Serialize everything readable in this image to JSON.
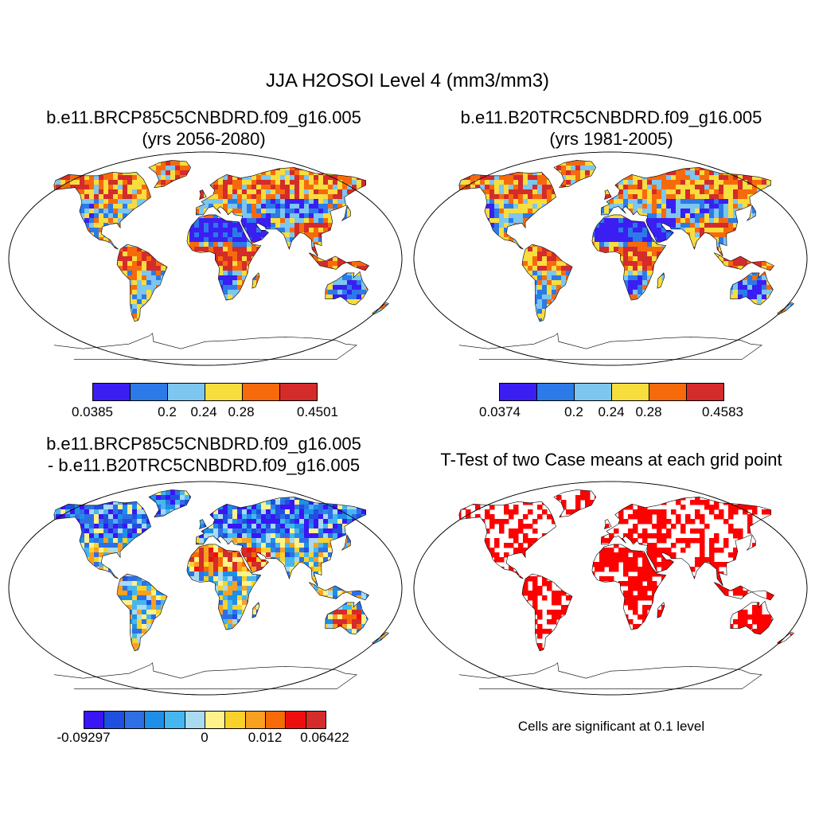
{
  "main_title": "JJA H2OSOI Level 4 (mm3/mm3)",
  "panels": [
    {
      "title_line1": "b.e11.BRCP85C5CNBDRD.f09_g16.005",
      "title_line2": "(yrs 2056-2080)",
      "type": "field"
    },
    {
      "title_line1": "b.e11.B20TRC5CNBDRD.f09_g16.005",
      "title_line2": "(yrs 1981-2005)",
      "type": "field"
    },
    {
      "title_line1": "b.e11.BRCP85C5CNBDRD.f09_g16.005",
      "title_line2": "- b.e11.B20TRC5CNBDRD.f09_g16.005",
      "type": "difference"
    },
    {
      "title_line1": "T-Test of two Case means at each grid point",
      "type": "significance"
    }
  ],
  "colorbars": [
    {
      "colors": [
        "#3b1ef2",
        "#2c7ae8",
        "#7cc6ef",
        "#f7dd3e",
        "#f76a0b",
        "#d42b2b"
      ],
      "labels": [
        "0.0385",
        "0.2",
        "0.24",
        "0.28",
        "0.4501"
      ]
    },
    {
      "colors": [
        "#3b1ef2",
        "#2c7ae8",
        "#7cc6ef",
        "#f7dd3e",
        "#f76a0b",
        "#d42b2b"
      ],
      "labels": [
        "0.0374",
        "0.2",
        "0.24",
        "0.28",
        "0.4583"
      ]
    },
    {
      "colors": [
        "#3a15f5",
        "#1f4fe0",
        "#2f6fe6",
        "#1d8fe8",
        "#45b6f0",
        "#a8daf0",
        "#fff28a",
        "#f8d22a",
        "#f9a020",
        "#f66a08",
        "#ee0e0e",
        "#d42b2b"
      ],
      "labels": [
        "-0.09297",
        "0",
        "0.012",
        "0.06422"
      ]
    }
  ],
  "significance_color": "#ff0000",
  "significance_note": "Cells are significant at 0.1 level"
}
